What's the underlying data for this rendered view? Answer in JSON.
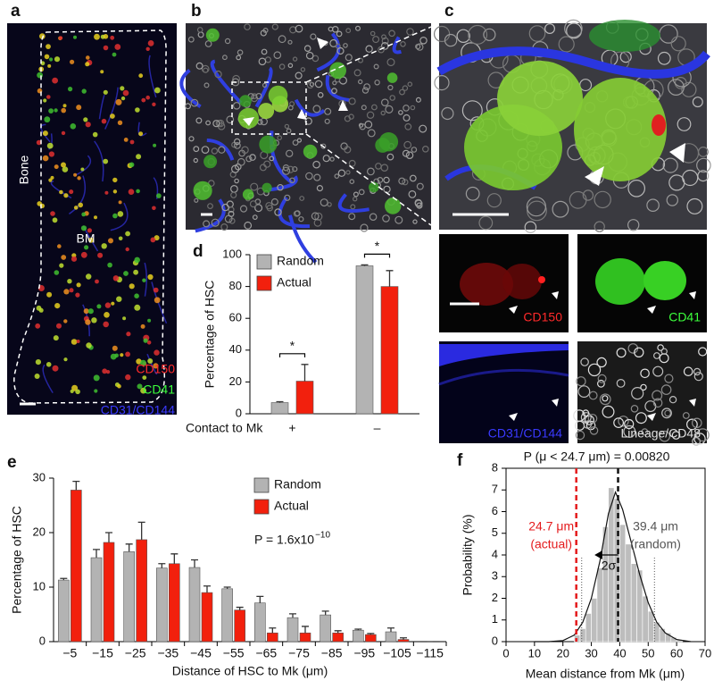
{
  "panels": {
    "labels": [
      "a",
      "b",
      "c",
      "d",
      "e",
      "f"
    ],
    "a": {
      "bone": "Bone",
      "bm": "BM",
      "markers": [
        "CD150",
        "CD41",
        "CD31/CD144"
      ]
    },
    "c": {
      "channels": [
        "CD150",
        "CD41",
        "CD31/CD144",
        "Lineage/CD48"
      ]
    }
  },
  "chart_data": [
    {
      "type": "bar",
      "ylabel": "Percentage of HSC",
      "xlabel": "Contact to Mk",
      "categories": [
        "+",
        "–"
      ],
      "series": [
        {
          "name": "Random",
          "color": "#b3b3b3",
          "values": [
            7,
            93
          ],
          "errors": [
            0.6,
            0.6
          ]
        },
        {
          "name": "Actual",
          "color": "#f2200d",
          "values": [
            20.5,
            80
          ],
          "errors": [
            10.5,
            10
          ]
        }
      ],
      "ylim": [
        0,
        100
      ],
      "yticks": [
        0,
        20,
        40,
        60,
        80,
        100
      ],
      "legend": "upper left",
      "significance": [
        "*",
        "*"
      ]
    },
    {
      "type": "bar",
      "ylabel": "Percentage of HSC",
      "xlabel": "Distance of HSC to Mk (μm)",
      "categories": [
        "−5",
        "−15",
        "−25",
        "−35",
        "−45",
        "−55",
        "−65",
        "−75",
        "−85",
        "−95",
        "−105",
        "−115"
      ],
      "series": [
        {
          "name": "Random",
          "color": "#b3b3b3",
          "values": [
            11.3,
            15.4,
            16.5,
            13.5,
            13.6,
            9.7,
            7.1,
            4.4,
            4.9,
            2.1,
            1.8,
            0
          ],
          "errors": [
            0.3,
            1.5,
            1.4,
            0.8,
            1.4,
            0.3,
            1.2,
            0.7,
            0.7,
            0.2,
            0.7,
            0
          ]
        },
        {
          "name": "Actual",
          "color": "#f2200d",
          "values": [
            27.8,
            18.2,
            18.7,
            14.3,
            9.0,
            5.8,
            1.6,
            1.6,
            1.6,
            1.3,
            0.4,
            0
          ],
          "errors": [
            1.6,
            1.8,
            3.2,
            1.8,
            1.2,
            0.5,
            0.9,
            1.2,
            0.4,
            0.2,
            0.3,
            0
          ]
        }
      ],
      "ylim": [
        0,
        30
      ],
      "yticks": [
        0,
        10,
        20,
        30
      ],
      "legend": "upper right",
      "annotation": {
        "text": "P = 1.6x10",
        "superscript": "−10"
      }
    },
    {
      "type": "histogram",
      "title": "P (μ < 24.7 μm) = 0.00820",
      "ylabel": "Probability (%)",
      "xlabel": "Mean distance from Mk (μm)",
      "bins": [
        24,
        26,
        28,
        30,
        32,
        34,
        36,
        38,
        40,
        42,
        44,
        46,
        48,
        50,
        52,
        54,
        56,
        58,
        60,
        62
      ],
      "counts": [
        0.3,
        0.6,
        1.3,
        2.0,
        3.4,
        5.3,
        7.1,
        6.6,
        5.4,
        4.5,
        3.6,
        3.3,
        2.1,
        1.4,
        0.9,
        0.6,
        0.4,
        0.2,
        0.1
      ],
      "color": "#bdbdbd",
      "fit": {
        "color": "#111111",
        "x": [
          10,
          15,
          20,
          24,
          27,
          30,
          33,
          36,
          38.5,
          41,
          44,
          47,
          50,
          53,
          56,
          60,
          65
        ],
        "y": [
          0,
          0,
          0.05,
          0.3,
          0.9,
          2.0,
          3.7,
          5.9,
          6.9,
          6.1,
          4.6,
          3.1,
          1.8,
          0.9,
          0.4,
          0.1,
          0
        ]
      },
      "vlines": [
        {
          "value": 24.7,
          "color": "#e41a1c",
          "label": "24.7 μm",
          "sublabel": "(actual)"
        },
        {
          "value": 39.4,
          "color": "#111111",
          "label": "39.4 μm",
          "sublabel": "(random)"
        }
      ],
      "sigma_lines": [
        26.6,
        52.2
      ],
      "arrow": {
        "label": "2σ",
        "from": 39.4,
        "to": 31.5,
        "y": 4
      },
      "xlim": [
        0,
        70
      ],
      "xticks": [
        0,
        10,
        20,
        30,
        40,
        50,
        60,
        70
      ],
      "ylim": [
        0,
        8
      ],
      "yticks": [
        0,
        1,
        2,
        3,
        4,
        5,
        6,
        7,
        8
      ]
    }
  ]
}
